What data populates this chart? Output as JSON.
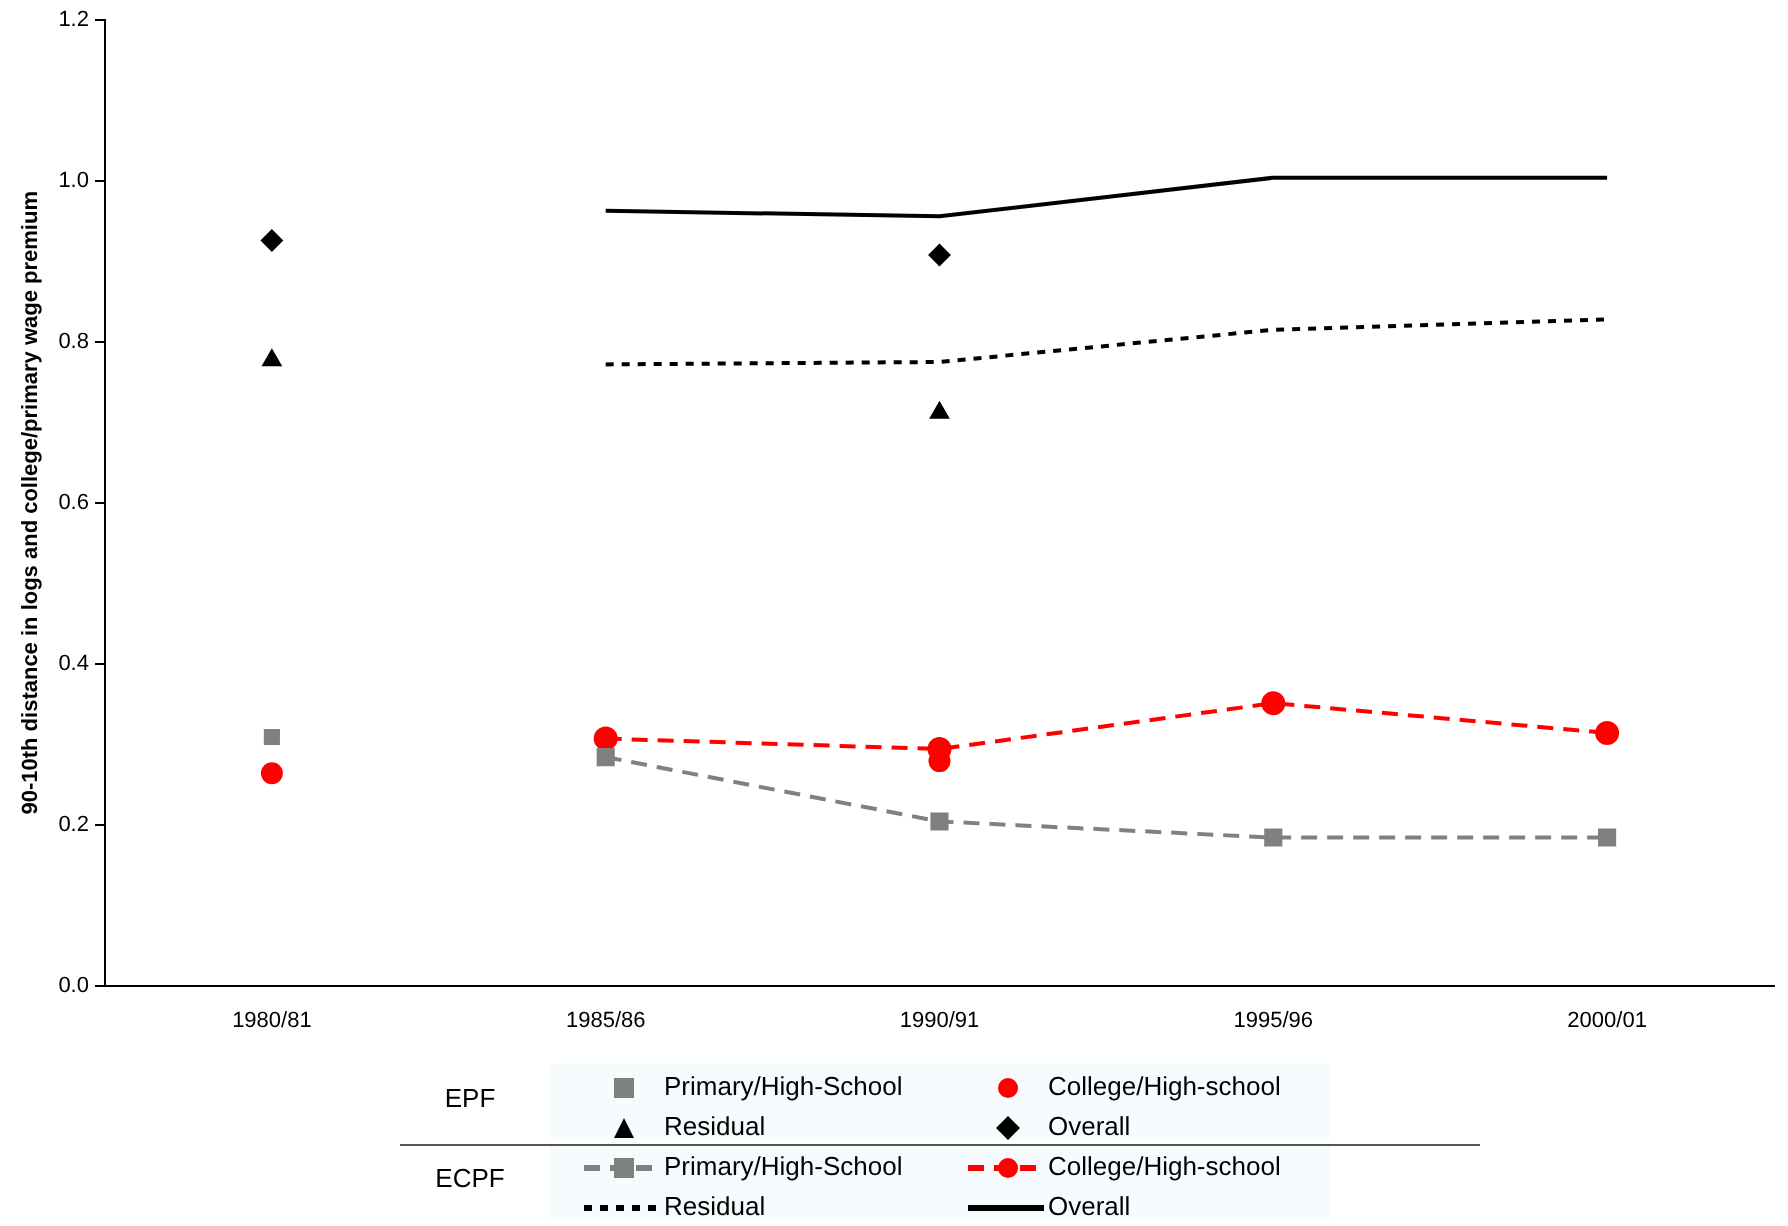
{
  "chart_data": {
    "type": "line",
    "ylabel": "90-10th distance in logs and college/primary wage premium",
    "categories": [
      "1980/81",
      "1985/86",
      "1990/91",
      "1995/96",
      "2000/01"
    ],
    "ylim": [
      0,
      1.2
    ],
    "yticks": [
      {
        "value": 0,
        "label": "0.0"
      },
      0.2,
      0.4,
      0.6,
      0.8,
      {
        "value": 1,
        "label": "1.0"
      },
      1.2
    ],
    "grid": false,
    "legend": "bottom",
    "annotations": [
      "EPF",
      "ECPF"
    ],
    "series": [
      {
        "name": "Primary/High-School",
        "type": "scatter",
        "marker": "square",
        "color": "#808080",
        "values": [
          0.309,
          null,
          null,
          null,
          null
        ]
      },
      {
        "name": "College/High-school",
        "type": "scatter",
        "marker": "circle",
        "color": "#ff0000",
        "values": [
          0.264,
          null,
          0.279,
          null,
          null
        ]
      },
      {
        "name": "Residual",
        "type": "scatter",
        "marker": "triangle",
        "color": "#000000",
        "values": [
          0.777,
          null,
          0.712,
          null,
          null
        ]
      },
      {
        "name": "Overall",
        "type": "scatter",
        "marker": "diamond",
        "color": "#000000",
        "values": [
          0.926,
          null,
          0.908,
          null,
          null
        ]
      },
      {
        "name": "Primary/High-School",
        "type": "line",
        "marker": "square",
        "line_style": "dashed",
        "color": "#808080",
        "values": [
          null,
          0.284,
          0.204,
          0.184,
          0.184
        ]
      },
      {
        "name": "College/High-school",
        "type": "line",
        "marker": "circle",
        "line_style": "dashed",
        "color": "#ff0000",
        "values": [
          null,
          0.307,
          0.294,
          0.351,
          0.314
        ]
      },
      {
        "name": "Residual",
        "type": "line",
        "marker": "none",
        "line_style": "dotted",
        "color": "#000000",
        "values": [
          null,
          0.772,
          0.775,
          0.815,
          0.828
        ]
      },
      {
        "name": "Overall",
        "type": "line",
        "marker": "none",
        "line_style": "solid",
        "color": "#000000",
        "values": [
          null,
          0.963,
          0.956,
          1.004,
          1.004
        ]
      }
    ]
  }
}
